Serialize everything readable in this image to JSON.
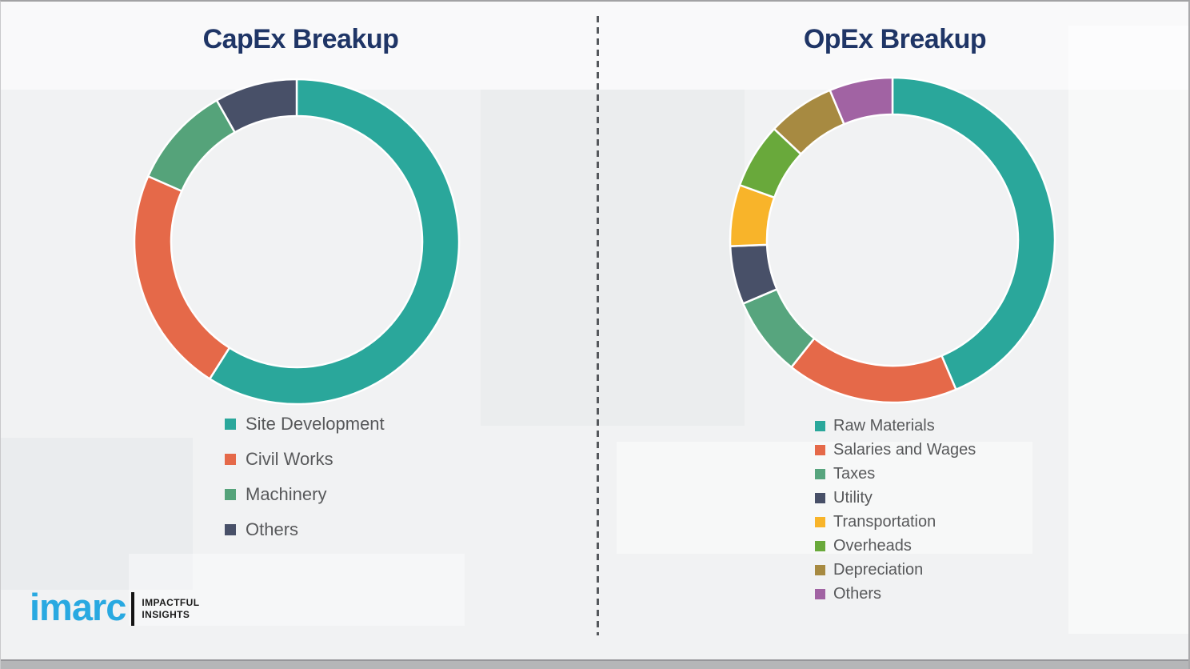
{
  "chart_data": [
    {
      "type": "pie",
      "subtype": "donut",
      "title": "CapEx Breakup",
      "start_angle_deg": 0,
      "direction": "clockwise",
      "legend_position": "below-left",
      "labels": [
        "Site Development",
        "Civil Works",
        "Machinery",
        "Others"
      ],
      "values": [
        59.0,
        22.6,
        10.2,
        8.2
      ],
      "colors": [
        "#2aa79b",
        "#e56949",
        "#55a37a",
        "#485068"
      ]
    },
    {
      "type": "pie",
      "subtype": "donut",
      "title": "OpEx Breakup",
      "start_angle_deg": 0,
      "direction": "clockwise",
      "legend_position": "below-left",
      "labels": [
        "Raw Materials",
        "Salaries and Wages",
        "Taxes",
        "Utility",
        "Transportation",
        "Overheads",
        "Depreciation",
        "Others"
      ],
      "values": [
        43.6,
        17.1,
        7.9,
        5.8,
        6.1,
        6.5,
        6.7,
        6.3
      ],
      "colors": [
        "#2aa79b",
        "#e56949",
        "#57a57e",
        "#485068",
        "#f8b42a",
        "#69a93b",
        "#a78a41",
        "#a163a3"
      ]
    }
  ],
  "branding": {
    "logo_text": "imarc",
    "tagline_line1": "IMPACTFUL",
    "tagline_line2": "INSIGHTS",
    "logo_color": "#29a9e1"
  },
  "style": {
    "title_color": "#1f3566",
    "legend_text_color": "#58595b",
    "divider_color": "#55585c",
    "background_color": "#f1f2f3"
  }
}
